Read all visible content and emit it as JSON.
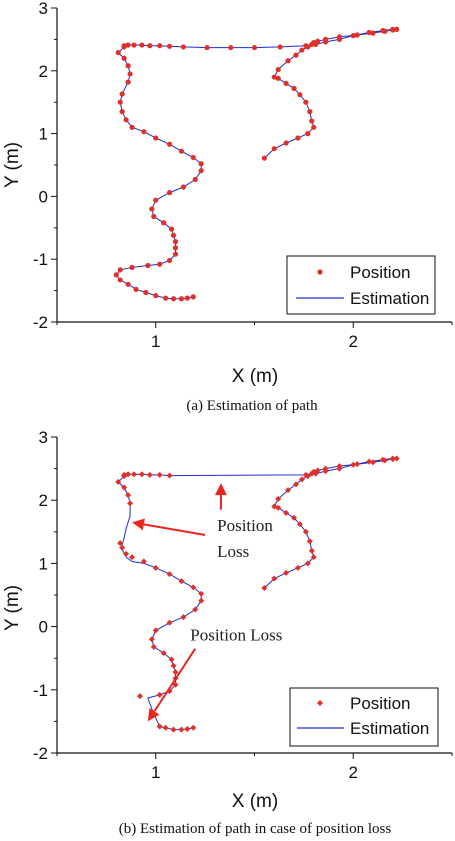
{
  "chart_data": [
    {
      "type": "line",
      "caption": "(a) Estimation of path",
      "xlabel": "X (m)",
      "ylabel": "Y (m)",
      "xlim": [
        0.5,
        2.5
      ],
      "ylim": [
        -2,
        3
      ],
      "xticks": [
        1,
        2
      ],
      "yticks": [
        -2,
        -1,
        0,
        1,
        2,
        3
      ],
      "legend": {
        "placement": "bottom-right",
        "entries": [
          {
            "label": "Position",
            "color": "#e0302a",
            "kind": "marker"
          },
          {
            "label": "Estimation",
            "color": "#1f2fd0",
            "kind": "line"
          }
        ]
      },
      "series": [
        {
          "name": "Position",
          "marker": "circle",
          "color": "#e0302a",
          "x": [
            1.55,
            1.6,
            1.66,
            1.72,
            1.77,
            1.8,
            1.79,
            1.78,
            1.76,
            1.73,
            1.7,
            1.66,
            1.62,
            1.6,
            1.62,
            1.67,
            1.71,
            1.74,
            1.77,
            1.79,
            1.8,
            1.82,
            1.86,
            1.93,
            2.02,
            2.1,
            2.16,
            2.2,
            2.22,
            2.2,
            2.15,
            2.08,
            2.0,
            1.93,
            1.86,
            1.81,
            1.76,
            1.63,
            1.5,
            1.38,
            1.26,
            1.14,
            1.07,
            1.02,
            0.97,
            0.93,
            0.89,
            0.86,
            0.84,
            0.84,
            0.81,
            0.84,
            0.86,
            0.87,
            0.86,
            0.83,
            0.82,
            0.83,
            0.85,
            0.88,
            0.94,
            1.0,
            1.07,
            1.13,
            1.19,
            1.23,
            1.23,
            1.2,
            1.14,
            1.07,
            1.0,
            0.98,
            0.99,
            1.04,
            1.08,
            1.09,
            1.1,
            1.1,
            1.1,
            1.07,
            1.02,
            0.96,
            0.88,
            0.82,
            0.8,
            0.82,
            0.86,
            0.9,
            0.95,
            1.0,
            1.05,
            1.09,
            1.13,
            1.16,
            1.19
          ],
          "y": [
            0.61,
            0.76,
            0.85,
            0.93,
            1.0,
            1.1,
            1.2,
            1.35,
            1.5,
            1.62,
            1.72,
            1.8,
            1.88,
            1.9,
            2.02,
            2.16,
            2.25,
            2.33,
            2.38,
            2.42,
            2.45,
            2.47,
            2.5,
            2.54,
            2.57,
            2.6,
            2.63,
            2.65,
            2.66,
            2.66,
            2.64,
            2.61,
            2.56,
            2.5,
            2.46,
            2.42,
            2.4,
            2.38,
            2.37,
            2.37,
            2.37,
            2.38,
            2.39,
            2.4,
            2.4,
            2.41,
            2.41,
            2.41,
            2.4,
            2.38,
            2.29,
            2.2,
            2.08,
            1.95,
            1.82,
            1.63,
            1.5,
            1.35,
            1.22,
            1.1,
            1.03,
            0.93,
            0.83,
            0.72,
            0.62,
            0.52,
            0.41,
            0.27,
            0.15,
            0.06,
            -0.06,
            -0.2,
            -0.32,
            -0.42,
            -0.52,
            -0.62,
            -0.72,
            -0.82,
            -0.92,
            -1.02,
            -1.08,
            -1.1,
            -1.13,
            -1.17,
            -1.25,
            -1.33,
            -1.4,
            -1.48,
            -1.53,
            -1.58,
            -1.62,
            -1.63,
            -1.63,
            -1.62,
            -1.6
          ]
        },
        {
          "name": "Estimation",
          "color": "#1f2fd0",
          "x": [
            1.55,
            1.6,
            1.66,
            1.72,
            1.77,
            1.8,
            1.79,
            1.78,
            1.76,
            1.73,
            1.7,
            1.66,
            1.62,
            1.6,
            1.62,
            1.67,
            1.71,
            1.74,
            1.77,
            1.79,
            1.8,
            1.82,
            1.86,
            1.93,
            2.02,
            2.1,
            2.16,
            2.2,
            2.22,
            2.2,
            2.15,
            2.08,
            2.0,
            1.93,
            1.86,
            1.81,
            1.76,
            1.63,
            1.5,
            1.38,
            1.26,
            1.14,
            1.07,
            1.02,
            0.97,
            0.93,
            0.89,
            0.86,
            0.84,
            0.84,
            0.81,
            0.84,
            0.86,
            0.87,
            0.86,
            0.83,
            0.82,
            0.83,
            0.85,
            0.88,
            0.94,
            1.0,
            1.07,
            1.13,
            1.19,
            1.23,
            1.23,
            1.2,
            1.14,
            1.07,
            1.0,
            0.98,
            0.99,
            1.04,
            1.08,
            1.09,
            1.1,
            1.1,
            1.1,
            1.07,
            1.02,
            0.96,
            0.88,
            0.82,
            0.8,
            0.82,
            0.86,
            0.9,
            0.95,
            1.0,
            1.05,
            1.09,
            1.13,
            1.16,
            1.19
          ],
          "y": [
            0.61,
            0.76,
            0.85,
            0.93,
            1.0,
            1.1,
            1.2,
            1.35,
            1.5,
            1.62,
            1.72,
            1.8,
            1.88,
            1.9,
            2.02,
            2.16,
            2.25,
            2.33,
            2.38,
            2.42,
            2.45,
            2.47,
            2.5,
            2.54,
            2.57,
            2.6,
            2.63,
            2.65,
            2.66,
            2.66,
            2.64,
            2.61,
            2.56,
            2.5,
            2.46,
            2.42,
            2.4,
            2.38,
            2.37,
            2.37,
            2.37,
            2.38,
            2.39,
            2.4,
            2.4,
            2.41,
            2.41,
            2.41,
            2.4,
            2.38,
            2.29,
            2.2,
            2.08,
            1.95,
            1.82,
            1.63,
            1.5,
            1.35,
            1.22,
            1.1,
            1.03,
            0.93,
            0.83,
            0.72,
            0.62,
            0.52,
            0.41,
            0.27,
            0.15,
            0.06,
            -0.06,
            -0.2,
            -0.32,
            -0.42,
            -0.52,
            -0.62,
            -0.72,
            -0.82,
            -0.92,
            -1.02,
            -1.08,
            -1.1,
            -1.13,
            -1.17,
            -1.25,
            -1.33,
            -1.4,
            -1.48,
            -1.53,
            -1.58,
            -1.62,
            -1.63,
            -1.63,
            -1.62,
            -1.6
          ]
        }
      ]
    },
    {
      "type": "line",
      "caption": "(b) Estimation of path in case of position loss",
      "xlabel": "X (m)",
      "ylabel": "Y (m)",
      "xlim": [
        0.5,
        2.5
      ],
      "ylim": [
        -2,
        3
      ],
      "xticks": [
        1,
        2
      ],
      "yticks": [
        -2,
        -1,
        0,
        1,
        2,
        3
      ],
      "legend": {
        "placement": "bottom-right",
        "entries": [
          {
            "label": "Position",
            "color": "#e0302a",
            "kind": "marker"
          },
          {
            "label": "Estimation",
            "color": "#1f2fd0",
            "kind": "line"
          }
        ]
      },
      "annotations": [
        {
          "text_lines": [
            "Position",
            "Loss"
          ],
          "target": [
            0.88,
            1.65
          ],
          "text_at": [
            1.25,
            1.45
          ]
        },
        {
          "text_lines": [
            ""
          ],
          "target": [
            1.33,
            2.27
          ],
          "text_at": [
            1.33,
            1.85
          ]
        },
        {
          "text_lines": [
            "Position Loss"
          ],
          "target": [
            0.96,
            -1.5
          ],
          "text_at": [
            1.2,
            -0.35
          ]
        }
      ],
      "series": [
        {
          "name": "Position",
          "marker": "diamond",
          "color": "#e0302a",
          "x": [
            1.55,
            1.6,
            1.66,
            1.72,
            1.77,
            1.8,
            1.79,
            1.78,
            1.76,
            1.73,
            1.7,
            1.66,
            1.62,
            1.6,
            1.62,
            1.67,
            1.71,
            1.74,
            1.77,
            1.79,
            1.8,
            1.82,
            1.86,
            1.93,
            2.02,
            2.1,
            2.16,
            2.2,
            2.22,
            2.2,
            2.15,
            2.08,
            2.0,
            1.93,
            1.86,
            1.81,
            1.76,
            1.07,
            1.02,
            0.97,
            0.93,
            0.89,
            0.86,
            0.84,
            0.84,
            0.81,
            0.84,
            0.86,
            0.87,
            0.82,
            0.83,
            0.85,
            0.88,
            0.94,
            1.0,
            1.07,
            1.13,
            1.19,
            1.23,
            1.23,
            1.2,
            1.14,
            1.07,
            1.0,
            0.98,
            0.99,
            1.04,
            1.08,
            1.09,
            1.1,
            1.1,
            1.1,
            1.07,
            1.02,
            0.92,
            1.02,
            1.05,
            1.09,
            1.13,
            1.16,
            1.19
          ],
          "y": [
            0.61,
            0.76,
            0.85,
            0.93,
            1.0,
            1.1,
            1.2,
            1.35,
            1.5,
            1.62,
            1.72,
            1.8,
            1.88,
            1.9,
            2.02,
            2.16,
            2.25,
            2.33,
            2.38,
            2.42,
            2.45,
            2.47,
            2.5,
            2.54,
            2.57,
            2.6,
            2.63,
            2.65,
            2.66,
            2.66,
            2.64,
            2.61,
            2.56,
            2.5,
            2.46,
            2.42,
            2.4,
            2.39,
            2.4,
            2.4,
            2.41,
            2.41,
            2.41,
            2.4,
            2.38,
            2.29,
            2.2,
            2.08,
            1.95,
            1.32,
            1.25,
            1.15,
            1.1,
            1.03,
            0.93,
            0.83,
            0.72,
            0.62,
            0.52,
            0.41,
            0.27,
            0.15,
            0.06,
            -0.06,
            -0.2,
            -0.32,
            -0.42,
            -0.52,
            -0.62,
            -0.72,
            -0.82,
            -0.92,
            -1.02,
            -1.08,
            -1.1,
            -1.58,
            -1.6,
            -1.63,
            -1.63,
            -1.62,
            -1.6
          ]
        },
        {
          "name": "Estimation",
          "color": "#1f2fd0",
          "x": [
            1.55,
            1.6,
            1.66,
            1.72,
            1.77,
            1.8,
            1.79,
            1.78,
            1.76,
            1.73,
            1.7,
            1.66,
            1.62,
            1.6,
            1.62,
            1.67,
            1.71,
            1.74,
            1.77,
            1.79,
            1.8,
            1.82,
            1.86,
            1.93,
            2.02,
            2.1,
            2.16,
            2.2,
            2.22,
            2.2,
            2.15,
            2.08,
            2.0,
            1.93,
            1.86,
            1.81,
            1.76,
            1.07,
            1.02,
            0.97,
            0.93,
            0.89,
            0.86,
            0.84,
            0.84,
            0.81,
            0.84,
            0.86,
            0.87,
            0.87,
            0.85,
            0.84,
            0.83,
            0.83,
            0.85,
            0.88,
            0.94,
            1.0,
            1.07,
            1.13,
            1.19,
            1.23,
            1.23,
            1.2,
            1.14,
            1.07,
            1.0,
            0.98,
            0.99,
            1.04,
            1.08,
            1.09,
            1.1,
            1.1,
            1.1,
            1.07,
            1.02,
            0.96,
            0.98,
            1.0,
            1.02,
            1.05,
            1.09,
            1.13,
            1.16,
            1.19
          ],
          "y": [
            0.61,
            0.76,
            0.85,
            0.93,
            1.0,
            1.1,
            1.2,
            1.35,
            1.5,
            1.62,
            1.72,
            1.8,
            1.88,
            1.9,
            2.02,
            2.16,
            2.25,
            2.33,
            2.38,
            2.42,
            2.45,
            2.47,
            2.5,
            2.54,
            2.57,
            2.6,
            2.63,
            2.65,
            2.66,
            2.66,
            2.64,
            2.61,
            2.56,
            2.5,
            2.46,
            2.42,
            2.4,
            2.39,
            2.4,
            2.4,
            2.41,
            2.41,
            2.41,
            2.4,
            2.38,
            2.29,
            2.2,
            2.08,
            1.95,
            1.75,
            1.55,
            1.4,
            1.3,
            1.22,
            1.1,
            1.03,
            1.0,
            0.93,
            0.83,
            0.72,
            0.62,
            0.52,
            0.41,
            0.27,
            0.15,
            0.06,
            -0.06,
            -0.2,
            -0.32,
            -0.42,
            -0.52,
            -0.62,
            -0.72,
            -0.82,
            -0.92,
            -1.02,
            -1.08,
            -1.13,
            -1.3,
            -1.45,
            -1.58,
            -1.6,
            -1.63,
            -1.63,
            -1.62,
            -1.6
          ]
        }
      ]
    }
  ]
}
